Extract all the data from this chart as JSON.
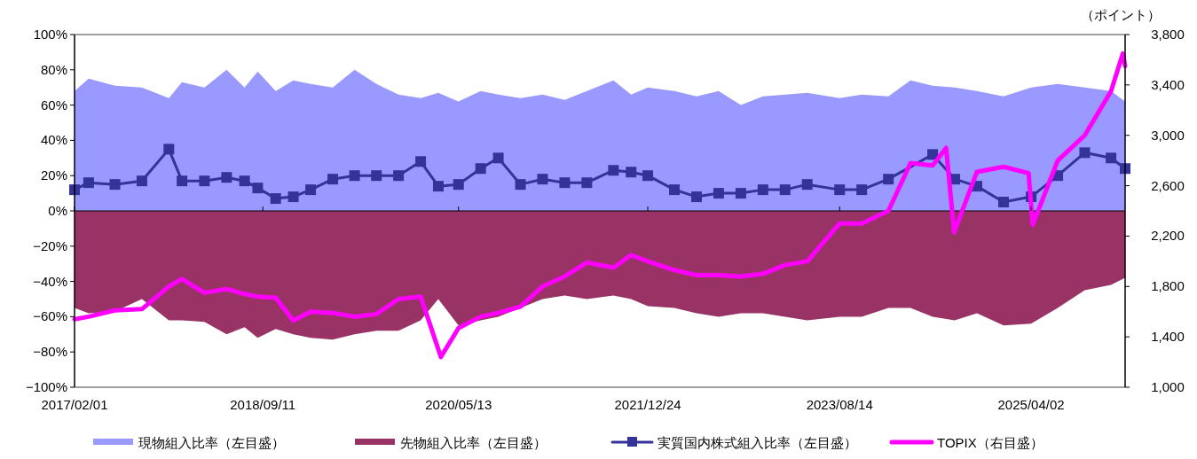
{
  "chart_data": {
    "type": "line",
    "y2label": "（ポイント）",
    "legend": "bottom",
    "x": [
      "2017-02-01",
      "2017-03-17",
      "2017-06-07",
      "2017-08-30",
      "2017-11-22",
      "2018-01-02",
      "2018-03-13",
      "2018-05-21",
      "2018-07-16",
      "2018-08-26",
      "2018-10-21",
      "2018-12-15",
      "2019-02-07",
      "2019-04-17",
      "2019-06-24",
      "2019-08-31",
      "2019-11-08",
      "2020-01-16",
      "2020-03-11",
      "2020-05-13",
      "2020-07-21",
      "2020-09-14",
      "2020-11-22",
      "2021-01-30",
      "2021-04-09",
      "2021-06-17",
      "2021-09-08",
      "2021-11-02",
      "2021-12-24",
      "2022-03-17",
      "2022-05-25",
      "2022-08-02",
      "2022-10-10",
      "2022-12-18",
      "2023-02-25",
      "2023-05-05",
      "2023-08-14",
      "2023-10-22",
      "2024-01-13",
      "2024-03-22",
      "2024-05-30",
      "2024-08-07",
      "2024-10-15",
      "2025-01-06",
      "2025-04-02",
      "2025-06-24",
      "2025-09-16",
      "2025-12-07",
      "2026-01-20"
    ],
    "series": [
      {
        "name": "現物組入比率（左目盛）",
        "type": "area",
        "color": "#9999ff",
        "values": [
          68,
          75,
          71,
          70,
          64,
          73,
          70,
          80,
          70,
          79,
          68,
          74,
          72,
          70,
          80,
          72,
          66,
          64,
          67,
          62,
          68,
          66,
          64,
          66,
          63,
          68,
          74,
          66,
          70,
          68,
          65,
          68,
          60,
          65,
          66,
          67,
          64,
          66,
          65,
          74,
          71,
          70,
          68,
          65,
          70,
          72,
          70,
          68,
          62
        ]
      },
      {
        "name": "先物組入比率（左目盛）",
        "type": "area",
        "color": "#993366",
        "values": [
          -55,
          -58,
          -57,
          -50,
          -62,
          -62,
          -63,
          -70,
          -66,
          -72,
          -67,
          -70,
          -72,
          -73,
          -70,
          -68,
          -68,
          -62,
          -50,
          -65,
          -62,
          -60,
          -55,
          -50,
          -48,
          -50,
          -48,
          -50,
          -54,
          -55,
          -58,
          -60,
          -58,
          -58,
          -60,
          -62,
          -60,
          -60,
          -55,
          -55,
          -60,
          -62,
          -58,
          -65,
          -64,
          -55,
          -45,
          -42,
          -38
        ]
      },
      {
        "name": "実質国内株式組入比率（左目盛）",
        "marker": "square",
        "color": "#333399",
        "values": [
          12,
          16,
          15,
          17,
          35,
          17,
          17,
          19,
          17,
          13,
          7,
          8,
          12,
          18,
          20,
          20,
          20,
          28,
          14,
          15,
          24,
          30,
          15,
          18,
          16,
          16,
          23,
          22,
          20,
          12,
          8,
          10,
          10,
          12,
          12,
          15,
          12,
          12,
          18,
          null,
          32,
          18,
          14,
          5,
          8,
          20,
          33,
          30,
          24
        ]
      },
      {
        "name": "TOPIX（右目盛）",
        "axis": "y2",
        "marker": "none",
        "color": "#ff00ff",
        "x": [
          "2017-02-01",
          "2017-03-17",
          "2017-06-07",
          "2017-08-30",
          "2017-11-22",
          "2018-01-02",
          "2018-03-13",
          "2018-05-21",
          "2018-07-16",
          "2018-08-26",
          "2018-10-21",
          "2018-12-15",
          "2019-02-07",
          "2019-04-17",
          "2019-06-24",
          "2019-08-31",
          "2019-11-08",
          "2020-01-16",
          "2020-03-19",
          "2020-05-13",
          "2020-07-21",
          "2020-09-14",
          "2020-11-22",
          "2021-01-30",
          "2021-04-09",
          "2021-06-17",
          "2021-09-08",
          "2021-11-02",
          "2021-12-24",
          "2022-03-17",
          "2022-05-25",
          "2022-08-02",
          "2022-10-10",
          "2022-12-18",
          "2023-02-25",
          "2023-05-05",
          "2023-08-14",
          "2023-10-22",
          "2024-01-13",
          "2024-03-22",
          "2024-05-30",
          "2024-07-11",
          "2024-08-05",
          "2024-10-15",
          "2025-01-06",
          "2025-03-25",
          "2025-04-07",
          "2025-06-24",
          "2025-09-16",
          "2025-12-07",
          "2026-01-13",
          "2026-01-20"
        ],
        "values": [
          1540,
          1560,
          1610,
          1620,
          1800,
          1860,
          1750,
          1780,
          1740,
          1720,
          1710,
          1530,
          1600,
          1590,
          1560,
          1580,
          1700,
          1720,
          1240,
          1470,
          1560,
          1590,
          1640,
          1800,
          1880,
          1990,
          1950,
          2050,
          2000,
          1930,
          1890,
          1890,
          1880,
          1900,
          1970,
          2000,
          2300,
          2300,
          2400,
          2780,
          2760,
          2900,
          2230,
          2710,
          2750,
          2700,
          2290,
          2800,
          3000,
          3350,
          3650,
          3550
        ]
      }
    ],
    "xlim": [
      "2017-02-01",
      "2026-01-20"
    ],
    "xticks": [
      {
        "value": "2017-02-01",
        "label": "2017/02/01"
      },
      {
        "value": "2018-09-11",
        "label": "2018/09/11"
      },
      {
        "value": "2020-05-13",
        "label": "2020/05/13"
      },
      {
        "value": "2021-12-24",
        "label": "2021/12/24"
      },
      {
        "value": "2023-08-14",
        "label": "2023/08/14"
      },
      {
        "value": "2025-04-02",
        "label": "2025/04/02"
      }
    ],
    "ylim": [
      -100,
      100
    ],
    "yticks": [
      {
        "value": -100,
        "label": "−100%"
      },
      {
        "value": -80,
        "label": "−80%"
      },
      {
        "value": -60,
        "label": "−60%"
      },
      {
        "value": -40,
        "label": "−40%"
      },
      {
        "value": -20,
        "label": "−20%"
      },
      {
        "value": 0,
        "label": "0%"
      },
      {
        "value": 20,
        "label": "20%"
      },
      {
        "value": 40,
        "label": "40%"
      },
      {
        "value": 60,
        "label": "60%"
      },
      {
        "value": 80,
        "label": "80%"
      },
      {
        "value": 100,
        "label": "100%"
      }
    ],
    "y2lim": [
      1000,
      3800
    ],
    "y2ticks": [
      {
        "value": 1000,
        "label": "1,000"
      },
      {
        "value": 1400,
        "label": "1,400"
      },
      {
        "value": 1800,
        "label": "1,800"
      },
      {
        "value": 2200,
        "label": "2,200"
      },
      {
        "value": 2600,
        "label": "2,600"
      },
      {
        "value": 3000,
        "label": "3,000"
      },
      {
        "value": 3400,
        "label": "3,400"
      },
      {
        "value": 3800,
        "label": "3,800"
      }
    ]
  }
}
